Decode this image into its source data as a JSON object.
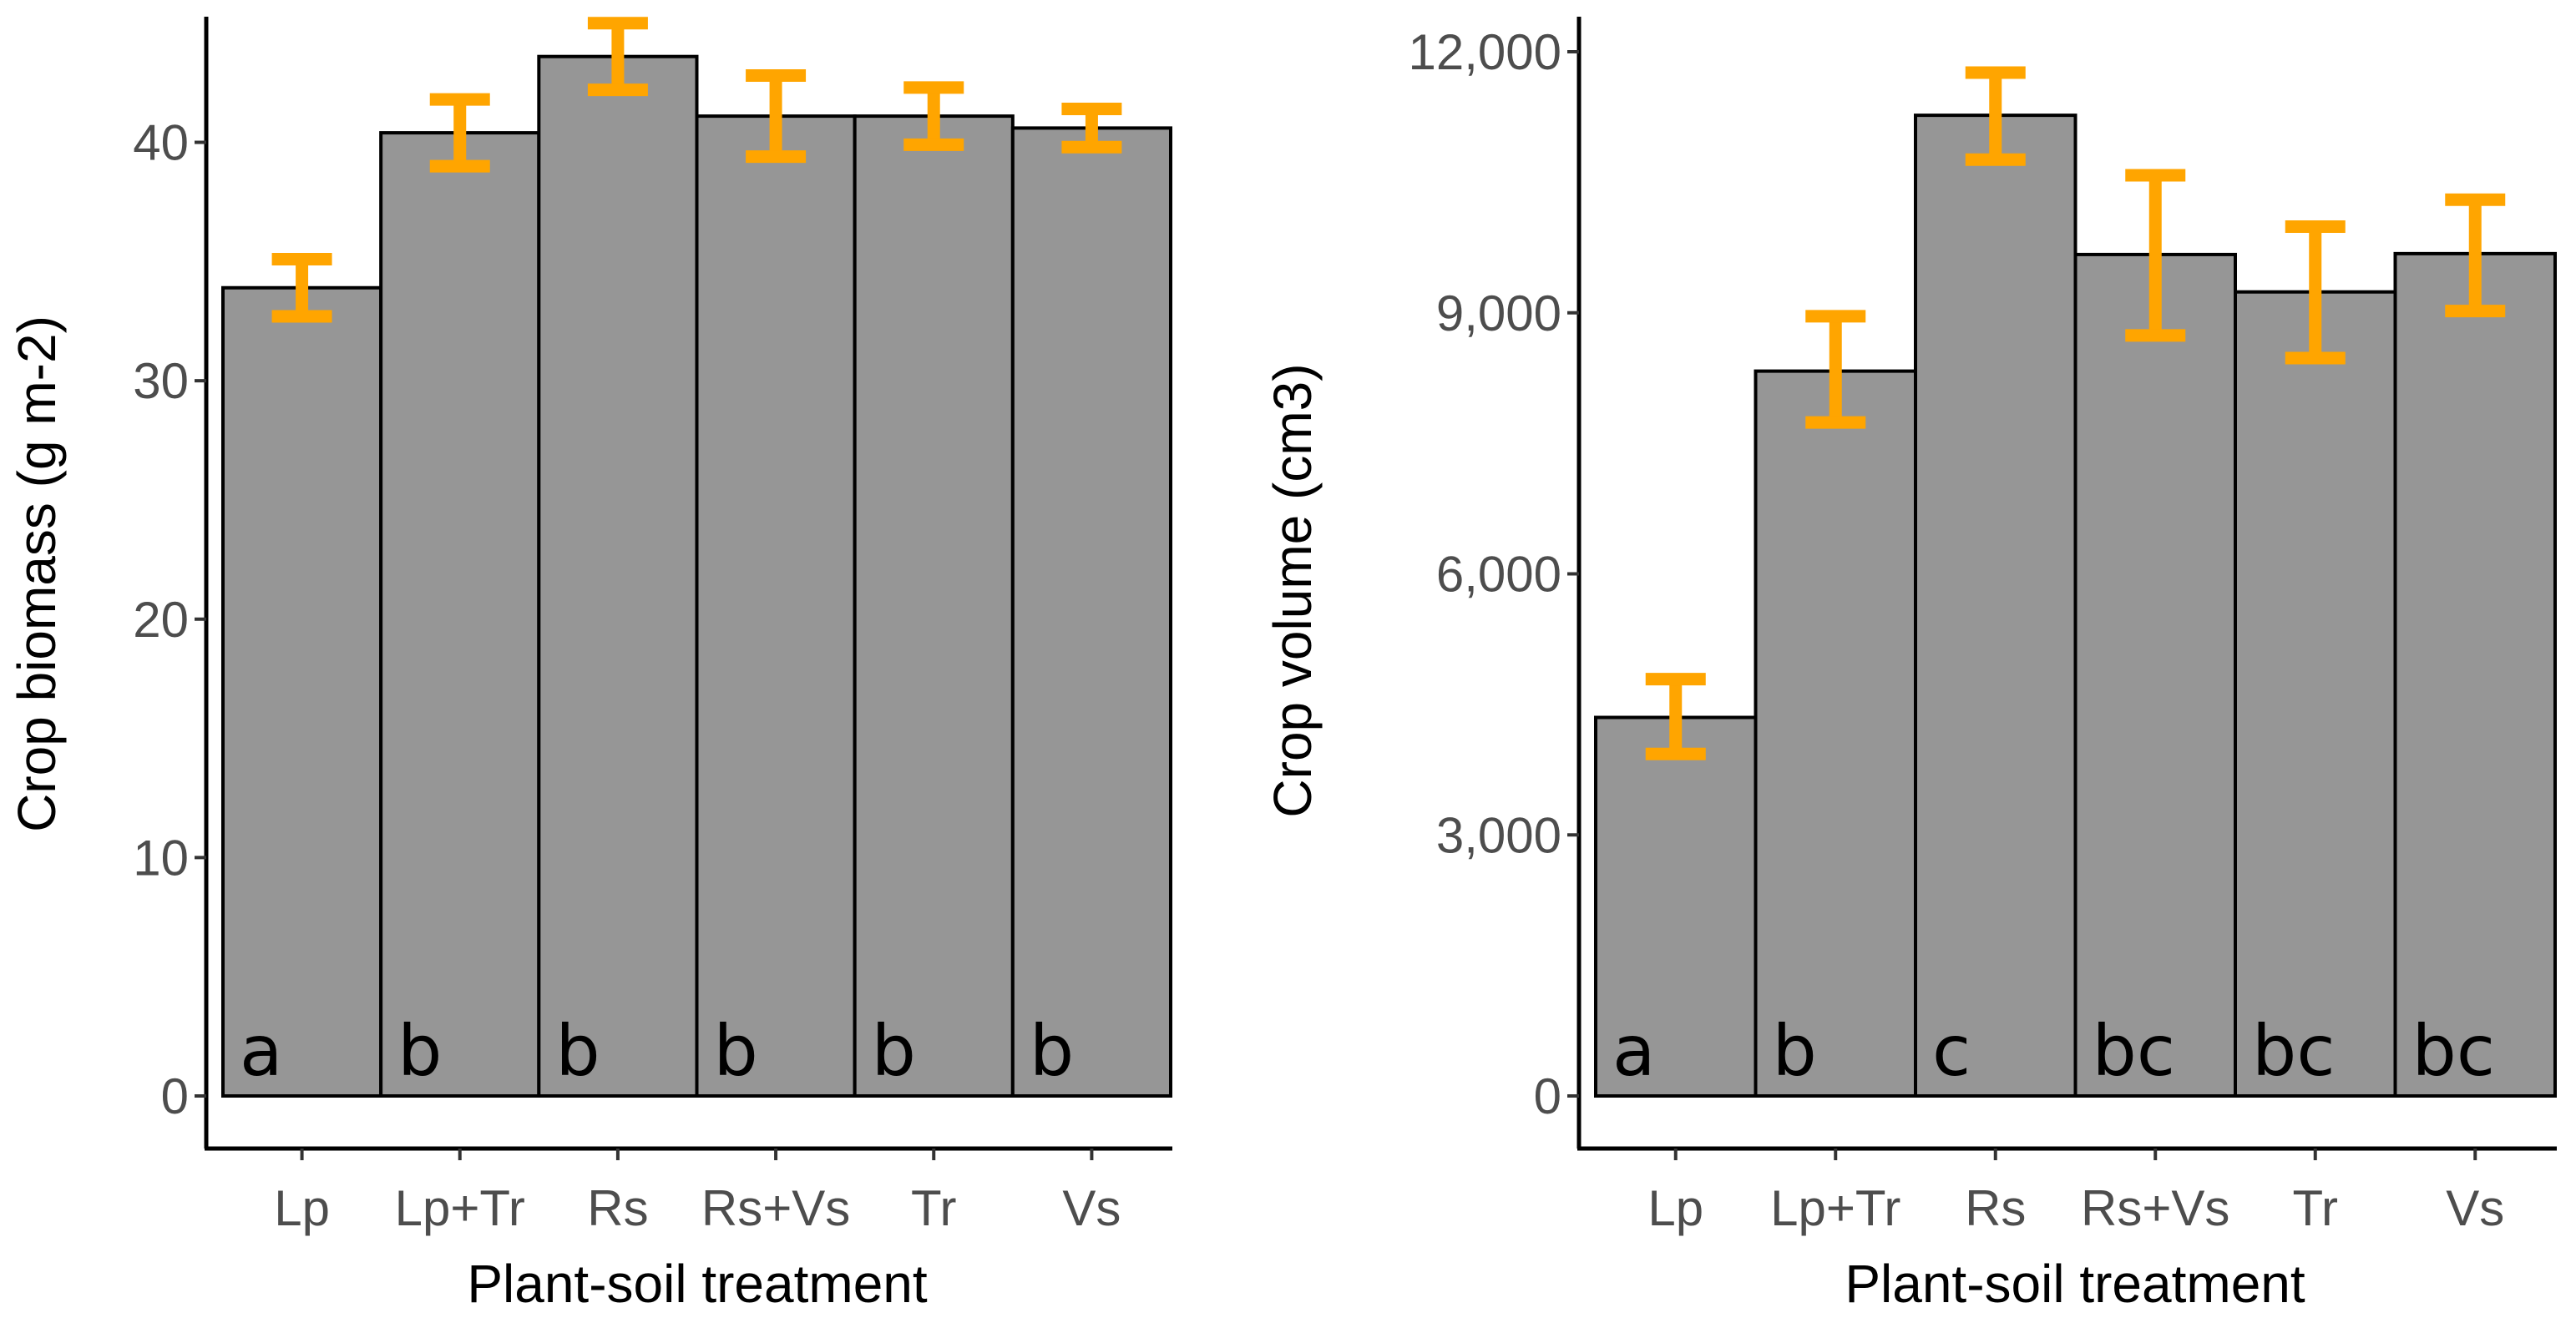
{
  "chart_data": [
    {
      "type": "bar",
      "name": "biomass-chart",
      "categories": [
        "Lp",
        "Lp+Tr",
        "Rs",
        "Rs+Vs",
        "Tr",
        "Vs"
      ],
      "values": [
        33.9,
        40.4,
        43.6,
        41.1,
        41.1,
        40.6
      ],
      "error_low": [
        32.7,
        39.0,
        42.2,
        39.4,
        39.9,
        39.8
      ],
      "error_high": [
        35.1,
        41.8,
        45.0,
        42.8,
        42.3,
        41.4
      ],
      "letters": [
        "a",
        "b",
        "b",
        "b",
        "b",
        "b"
      ],
      "ylim": [
        0,
        45.2
      ],
      "yticks": [
        0,
        10,
        20,
        30,
        40
      ],
      "ytick_labels": [
        "0",
        "10",
        "20",
        "30",
        "40"
      ],
      "xlabel": "Plant-soil treatment",
      "ylabel": "Crop biomass (g m-2)",
      "bar_color": "#969696",
      "error_color": "#FFA500"
    },
    {
      "type": "bar",
      "name": "volume-chart",
      "categories": [
        "Lp",
        "Lp+Tr",
        "Rs",
        "Rs+Vs",
        "Tr",
        "Vs"
      ],
      "values": [
        4350,
        8330,
        11270,
        9670,
        9240,
        9680
      ],
      "error_low": [
        3930,
        7740,
        10760,
        8740,
        8480,
        9020
      ],
      "error_high": [
        4790,
        8960,
        11760,
        10580,
        9990,
        10300
      ],
      "letters": [
        "a",
        "b",
        "c",
        "bc",
        "bc",
        "bc"
      ],
      "ylim": [
        0,
        12000
      ],
      "yticks": [
        0,
        3000,
        6000,
        9000,
        12000
      ],
      "ytick_labels": [
        "0",
        "3,000",
        "6,000",
        "9,000",
        "12,000"
      ],
      "xlabel": "Plant-soil treatment",
      "ylabel": "Crop volume (cm3)",
      "bar_color": "#969696",
      "error_color": "#FFA500"
    }
  ]
}
